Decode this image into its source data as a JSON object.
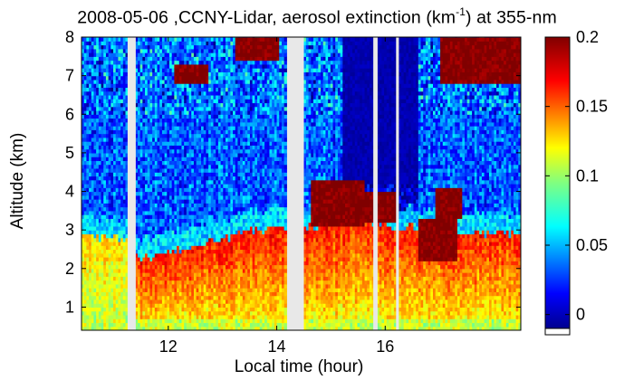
{
  "title": {
    "prefix": "2008-05-06 ,CCNY-Lidar, aerosol extinction (km",
    "superscript": "-1",
    "suffix": ") at 355-nm"
  },
  "chart_data": {
    "type": "heatmap",
    "xlabel": "Local time (hour)",
    "ylabel": "Altitude (km)",
    "xlim": [
      10.4,
      18.5
    ],
    "ylim": [
      0.4,
      8.0
    ],
    "x_ticks": [
      {
        "value": 12,
        "label": "12"
      },
      {
        "value": 14,
        "label": "14"
      },
      {
        "value": 16,
        "label": "16"
      }
    ],
    "y_ticks": [
      {
        "value": 1,
        "label": "1"
      },
      {
        "value": 2,
        "label": "2"
      },
      {
        "value": 3,
        "label": "3"
      },
      {
        "value": 4,
        "label": "4"
      },
      {
        "value": 5,
        "label": "5"
      },
      {
        "value": 6,
        "label": "6"
      },
      {
        "value": 7,
        "label": "7"
      },
      {
        "value": 8,
        "label": "8"
      }
    ],
    "colorbar": {
      "range": [
        -0.01,
        0.2
      ],
      "ticks": [
        {
          "value": 0.2,
          "label": "0.2"
        },
        {
          "value": 0.15,
          "label": "0.15"
        },
        {
          "value": 0.1,
          "label": "0.1"
        },
        {
          "value": 0.05,
          "label": "0.05"
        },
        {
          "value": 0,
          "label": "0"
        }
      ],
      "colormap": "jet"
    },
    "data_gaps_hours": [
      [
        11.25,
        11.4
      ],
      [
        14.2,
        14.5
      ],
      [
        15.78,
        15.86
      ],
      [
        16.2,
        16.25
      ]
    ],
    "boundary_layer_top_km": [
      {
        "x": 10.5,
        "y": 2.8
      },
      {
        "x": 11.2,
        "y": 2.8
      },
      {
        "x": 11.5,
        "y": 2.2
      },
      {
        "x": 12.0,
        "y": 2.5
      },
      {
        "x": 12.7,
        "y": 2.7
      },
      {
        "x": 13.5,
        "y": 3.0
      },
      {
        "x": 14.0,
        "y": 3.0
      },
      {
        "x": 14.6,
        "y": 3.1
      },
      {
        "x": 15.2,
        "y": 3.3
      },
      {
        "x": 15.7,
        "y": 3.2
      },
      {
        "x": 16.3,
        "y": 3.1
      },
      {
        "x": 17.0,
        "y": 3.0
      },
      {
        "x": 18.0,
        "y": 2.9
      },
      {
        "x": 18.5,
        "y": 2.9
      }
    ],
    "cloud_layers": [
      {
        "t_start": 13.2,
        "t_end": 14.0,
        "z_bottom": 7.4,
        "z_top": 8.0
      },
      {
        "t_start": 12.1,
        "t_end": 12.7,
        "z_bottom": 6.8,
        "z_top": 7.3
      },
      {
        "t_start": 14.6,
        "t_end": 15.6,
        "z_bottom": 3.1,
        "z_top": 4.3
      },
      {
        "t_start": 15.6,
        "t_end": 16.2,
        "z_bottom": 3.2,
        "z_top": 4.0
      },
      {
        "t_start": 16.6,
        "t_end": 17.3,
        "z_bottom": 2.2,
        "z_top": 3.3
      },
      {
        "t_start": 16.9,
        "t_end": 17.4,
        "z_bottom": 3.3,
        "z_top": 4.1
      },
      {
        "t_start": 17.0,
        "t_end": 18.5,
        "z_bottom": 6.8,
        "z_top": 8.0
      }
    ]
  }
}
